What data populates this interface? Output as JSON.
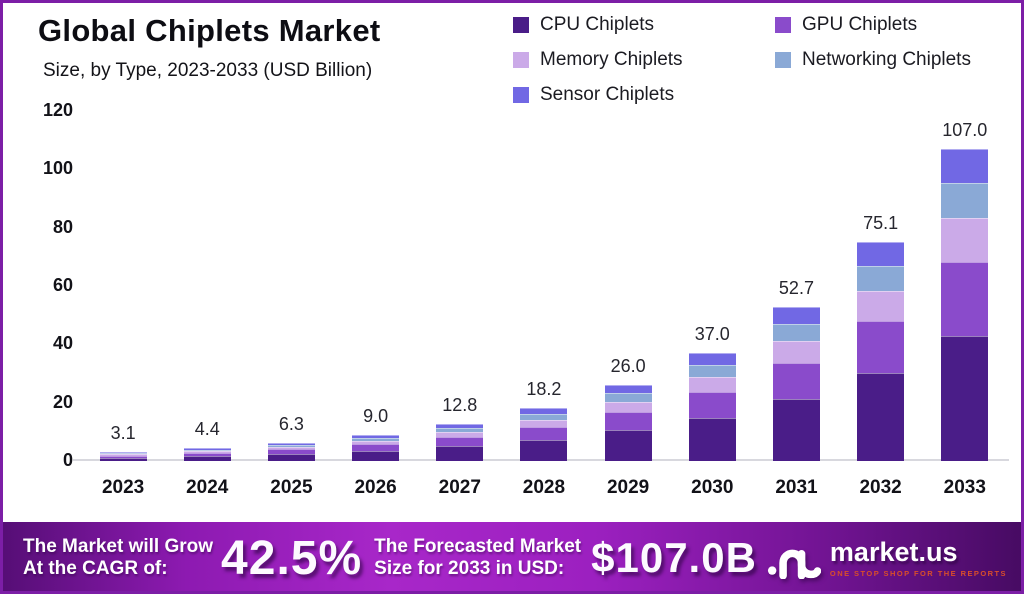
{
  "header": {
    "title": "Global Chiplets Market",
    "subtitle": "Size, by Type, 2023-2033 (USD Billion)"
  },
  "colors": {
    "frame_border": "#7c1ea6",
    "cpu": "#4a1d88",
    "gpu": "#8a4bcb",
    "memory": "#cbaae8",
    "networking": "#8aa9d6",
    "sensor": "#7168e4",
    "brand_tagline": "#d94e2a"
  },
  "legend": {
    "items": [
      {
        "label": "CPU Chiplets",
        "color": "#4a1d88"
      },
      {
        "label": "GPU Chiplets",
        "color": "#8a4bcb"
      },
      {
        "label": "Memory Chiplets",
        "color": "#cbaae8"
      },
      {
        "label": "Networking Chiplets",
        "color": "#8aa9d6"
      },
      {
        "label": "Sensor Chiplets",
        "color": "#7168e4"
      }
    ]
  },
  "chart_data": {
    "type": "bar",
    "stacked": true,
    "title": "Global Chiplets Market",
    "subtitle": "Size, by Type, 2023-2033 (USD Billion)",
    "xlabel": "",
    "ylabel": "USD Billion",
    "ylim": [
      0,
      120
    ],
    "yticks": [
      0,
      20,
      40,
      60,
      80,
      100,
      120
    ],
    "grid": false,
    "legend_position": "top-right",
    "categories": [
      "2023",
      "2024",
      "2025",
      "2026",
      "2027",
      "2028",
      "2029",
      "2030",
      "2031",
      "2032",
      "2033"
    ],
    "totals": [
      3.1,
      4.4,
      6.3,
      9.0,
      12.8,
      18.2,
      26.0,
      37.0,
      52.7,
      75.1,
      107.0
    ],
    "total_labels": [
      "3.1",
      "4.4",
      "6.3",
      "9.0",
      "12.8",
      "18.2",
      "26.0",
      "37.0",
      "52.7",
      "75.1",
      "107.0"
    ],
    "series": [
      {
        "name": "CPU Chiplets",
        "color": "#4a1d88",
        "values": [
          1.2,
          1.8,
          2.5,
          3.6,
          5.1,
          7.3,
          10.5,
          14.9,
          21.2,
          30.2,
          43.0
        ]
      },
      {
        "name": "GPU Chiplets",
        "color": "#8a4bcb",
        "values": [
          0.7,
          1.0,
          1.5,
          2.1,
          3.0,
          4.3,
          6.2,
          8.8,
          12.5,
          17.8,
          25.4
        ]
      },
      {
        "name": "Memory Chiplets",
        "color": "#cbaae8",
        "values": [
          0.5,
          0.6,
          0.9,
          1.3,
          1.8,
          2.5,
          3.6,
          5.1,
          7.3,
          10.4,
          14.9
        ]
      },
      {
        "name": "Networking Chiplets",
        "color": "#8aa9d6",
        "values": [
          0.4,
          0.5,
          0.7,
          1.0,
          1.5,
          2.0,
          2.9,
          4.1,
          5.9,
          8.4,
          12.0
        ]
      },
      {
        "name": "Sensor Chiplets",
        "color": "#7168e4",
        "values": [
          0.3,
          0.5,
          0.7,
          1.0,
          1.4,
          2.1,
          2.8,
          4.1,
          5.8,
          8.3,
          11.7
        ]
      }
    ]
  },
  "footer": {
    "cagr_label_line1": "The Market will Grow",
    "cagr_label_line2": "At the CAGR of:",
    "cagr_value": "42.5%",
    "forecast_label_line1": "The Forecasted Market",
    "forecast_label_line2": "Size for 2033 in USD:",
    "forecast_value": "$107.0B",
    "brand_name": "market.us",
    "brand_tagline": "ONE STOP SHOP FOR THE REPORTS"
  }
}
